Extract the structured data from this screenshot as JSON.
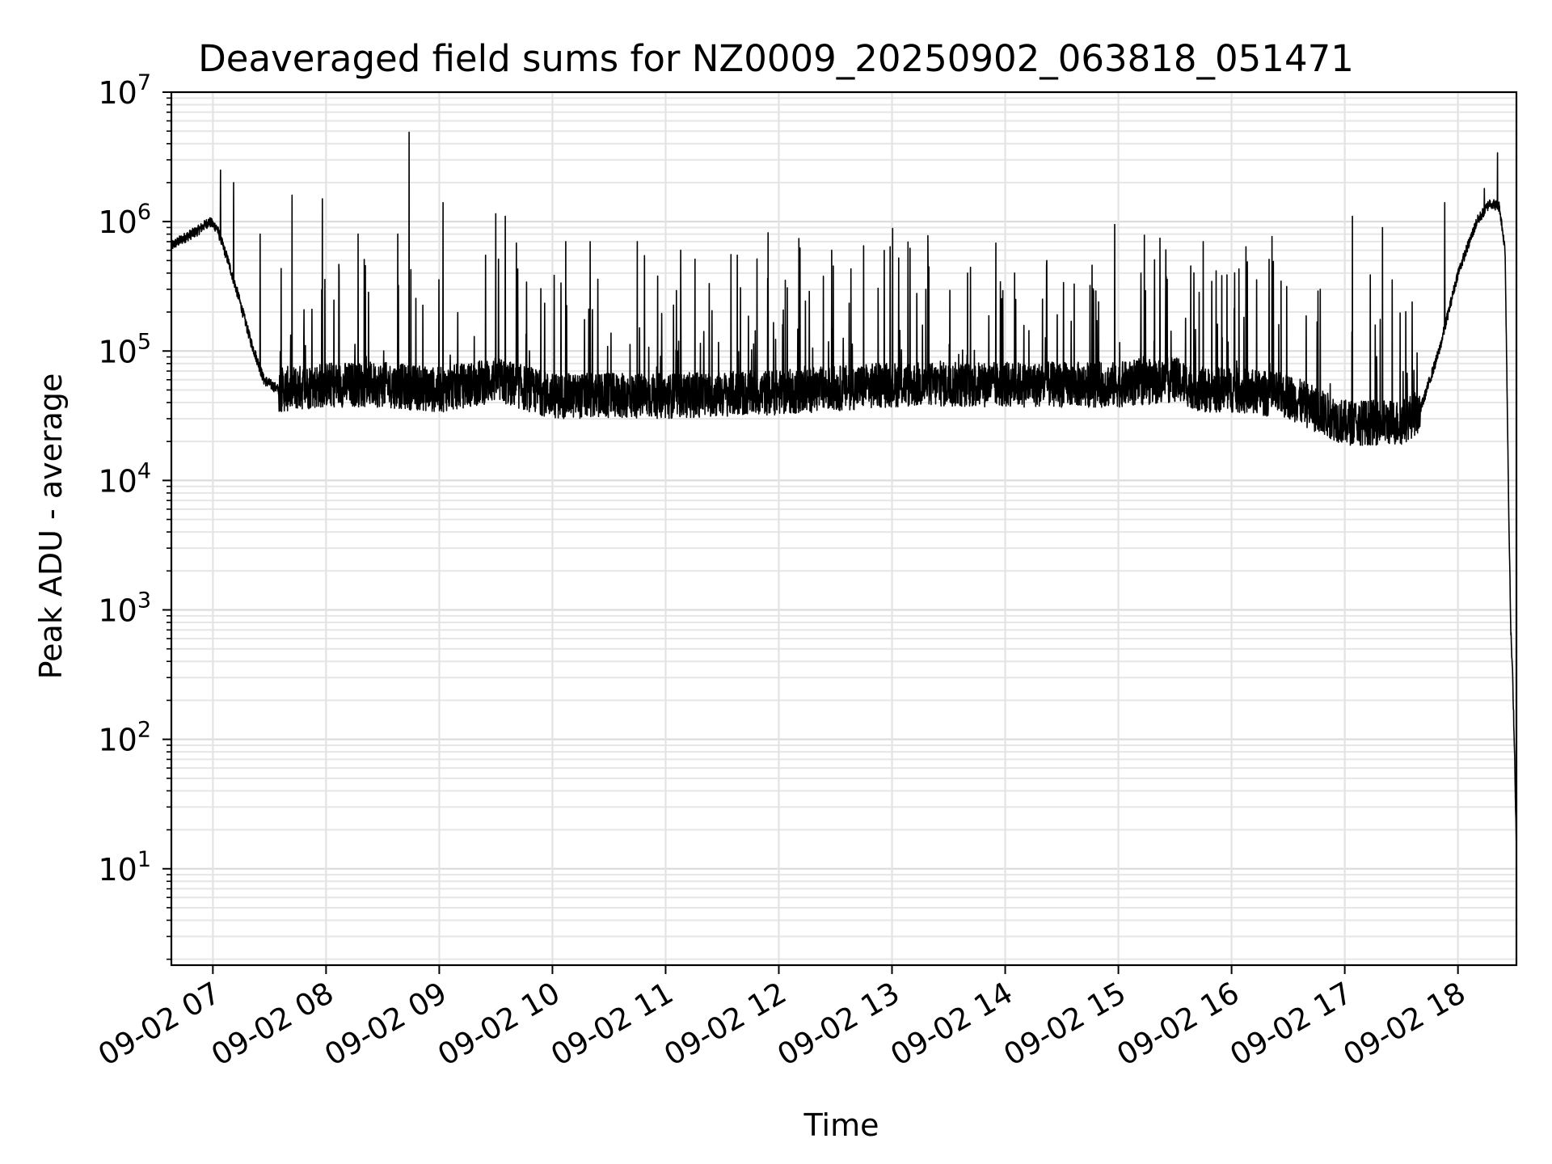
{
  "chart_data": {
    "type": "line",
    "title": "Deaveraged field sums for NZ0009_20250902_063818_051471",
    "xlabel": "Time",
    "ylabel": "Peak ADU - average",
    "y_scale": "log",
    "ylim": [
      1.8,
      10000000
    ],
    "xlim": [
      "2025-09-02 06:38",
      "2025-09-02 18:31"
    ],
    "grid": true,
    "x_ticks": [
      {
        "t": "2025-09-02 07:00",
        "label": "09-02 07"
      },
      {
        "t": "2025-09-02 08:00",
        "label": "09-02 08"
      },
      {
        "t": "2025-09-02 09:00",
        "label": "09-02 09"
      },
      {
        "t": "2025-09-02 10:00",
        "label": "09-02 10"
      },
      {
        "t": "2025-09-02 11:00",
        "label": "09-02 11"
      },
      {
        "t": "2025-09-02 12:00",
        "label": "09-02 12"
      },
      {
        "t": "2025-09-02 13:00",
        "label": "09-02 13"
      },
      {
        "t": "2025-09-02 14:00",
        "label": "09-02 14"
      },
      {
        "t": "2025-09-02 15:00",
        "label": "09-02 15"
      },
      {
        "t": "2025-09-02 16:00",
        "label": "09-02 16"
      },
      {
        "t": "2025-09-02 17:00",
        "label": "09-02 17"
      },
      {
        "t": "2025-09-02 18:00",
        "label": "09-02 18"
      }
    ],
    "y_ticks": [
      {
        "value": 10,
        "base": "10",
        "exp": "1"
      },
      {
        "value": 100,
        "base": "10",
        "exp": "2"
      },
      {
        "value": 1000,
        "base": "10",
        "exp": "3"
      },
      {
        "value": 10000,
        "base": "10",
        "exp": "4"
      },
      {
        "value": 100000,
        "base": "10",
        "exp": "5"
      },
      {
        "value": 1000000,
        "base": "10",
        "exp": "6"
      },
      {
        "value": 10000000,
        "base": "10",
        "exp": "7"
      }
    ],
    "series": [
      {
        "color": "#000000",
        "baseline": [
          [
            "2025-09-02 06:38",
            650000
          ],
          [
            "2025-09-02 06:45",
            750000
          ],
          [
            "2025-09-02 06:52",
            850000
          ],
          [
            "2025-09-02 06:58",
            1000000
          ],
          [
            "2025-09-02 07:02",
            900000
          ],
          [
            "2025-09-02 07:08",
            500000
          ],
          [
            "2025-09-02 07:14",
            250000
          ],
          [
            "2025-09-02 07:20",
            120000
          ],
          [
            "2025-09-02 07:27",
            60000
          ],
          [
            "2025-09-02 07:35",
            50000
          ],
          [
            "2025-09-02 08:00",
            55000
          ],
          [
            "2025-09-02 08:30",
            55000
          ],
          [
            "2025-09-02 09:00",
            50000
          ],
          [
            "2025-09-02 09:30",
            60000
          ],
          [
            "2025-09-02 10:00",
            45000
          ],
          [
            "2025-09-02 10:30",
            45000
          ],
          [
            "2025-09-02 11:00",
            45000
          ],
          [
            "2025-09-02 12:00",
            48000
          ],
          [
            "2025-09-02 13:00",
            55000
          ],
          [
            "2025-09-02 14:00",
            55000
          ],
          [
            "2025-09-02 14:30",
            55000
          ],
          [
            "2025-09-02 15:00",
            55000
          ],
          [
            "2025-09-02 15:30",
            60000
          ],
          [
            "2025-09-02 15:45",
            50000
          ],
          [
            "2025-09-02 16:00",
            50000
          ],
          [
            "2025-09-02 16:30",
            45000
          ],
          [
            "2025-09-02 16:45",
            35000
          ],
          [
            "2025-09-02 17:00",
            28000
          ],
          [
            "2025-09-02 17:30",
            28000
          ],
          [
            "2025-09-02 17:40",
            35000
          ],
          [
            "2025-09-02 17:50",
            100000
          ],
          [
            "2025-09-02 18:00",
            400000
          ],
          [
            "2025-09-02 18:10",
            1000000
          ],
          [
            "2025-09-02 18:17",
            1400000
          ],
          [
            "2025-09-02 18:22",
            1300000
          ],
          [
            "2025-09-02 18:25",
            600000
          ],
          [
            "2025-09-02 18:27",
            5000
          ],
          [
            "2025-09-02 18:28",
            700
          ],
          [
            "2025-09-02 18:29",
            300
          ],
          [
            "2025-09-02 18:30",
            80
          ],
          [
            "2025-09-02 18:31",
            14
          ]
        ],
        "spikes": [
          [
            "2025-09-02 07:04",
            2500000
          ],
          [
            "2025-09-02 07:11",
            2000000
          ],
          [
            "2025-09-02 07:25",
            800000
          ],
          [
            "2025-09-02 07:42",
            1600000
          ],
          [
            "2025-09-02 07:58",
            1500000
          ],
          [
            "2025-09-02 08:17",
            800000
          ],
          [
            "2025-09-02 08:38",
            800000
          ],
          [
            "2025-09-02 08:44",
            4900000
          ],
          [
            "2025-09-02 09:02",
            1400000
          ],
          [
            "2025-09-02 09:30",
            1150000
          ],
          [
            "2025-09-02 09:35",
            1100000
          ],
          [
            "2025-09-02 10:07",
            700000
          ],
          [
            "2025-09-02 10:20",
            700000
          ],
          [
            "2025-09-02 10:45",
            700000
          ],
          [
            "2025-09-02 11:08",
            600000
          ],
          [
            "2025-09-02 11:38",
            550000
          ],
          [
            "2025-09-02 12:28",
            600000
          ],
          [
            "2025-09-02 12:45",
            650000
          ],
          [
            "2025-09-02 13:18",
            300000
          ],
          [
            "2025-09-02 13:40",
            400000
          ],
          [
            "2025-09-02 14:05",
            400000
          ],
          [
            "2025-09-02 14:22",
            500000
          ],
          [
            "2025-09-02 14:58",
            950000
          ],
          [
            "2025-09-02 15:12",
            400000
          ],
          [
            "2025-09-02 15:45",
            700000
          ],
          [
            "2025-09-02 16:25",
            160000
          ],
          [
            "2025-09-02 16:47",
            300000
          ],
          [
            "2025-09-02 17:04",
            1100000
          ],
          [
            "2025-09-02 17:20",
            900000
          ],
          [
            "2025-09-02 17:53",
            1400000
          ],
          [
            "2025-09-02 18:14",
            1800000
          ],
          [
            "2025-09-02 18:21",
            3400000
          ]
        ]
      }
    ]
  }
}
